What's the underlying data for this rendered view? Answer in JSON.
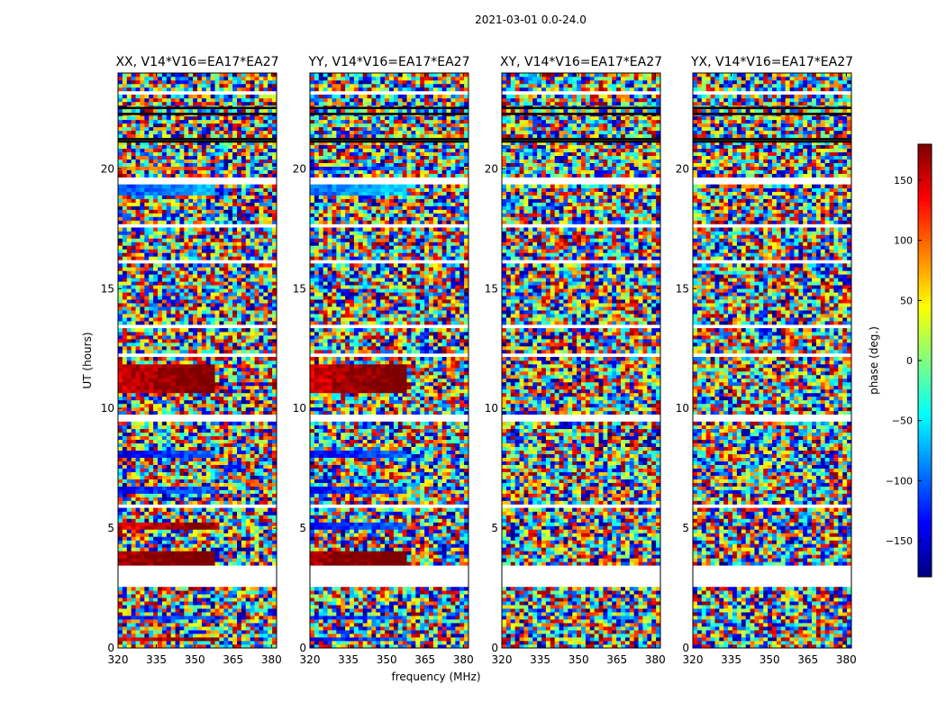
{
  "figure": {
    "suptitle": "2021-03-01 0.0-24.0",
    "shared_xlabel": "frequency (MHz)",
    "shared_ylabel": "UT (hours)"
  },
  "chart_data": {
    "type": "heatmap",
    "x": {
      "label": "frequency (MHz)",
      "range": [
        320,
        382
      ],
      "ticks": [
        320,
        335,
        350,
        365,
        380
      ],
      "tick_labels": [
        "320",
        "335",
        "350",
        "365",
        "380"
      ]
    },
    "y": {
      "label": "UT (hours)",
      "range": [
        0,
        24
      ],
      "ticks": [
        0,
        5,
        10,
        15,
        20
      ],
      "tick_labels": [
        "0",
        "5",
        "10",
        "15",
        "20"
      ]
    },
    "colorbar": {
      "label": "phase (deg.)",
      "range": [
        -180,
        180
      ],
      "ticks": [
        -150,
        -100,
        -50,
        0,
        50,
        100,
        150
      ],
      "tick_labels": [
        "−150",
        "−100",
        "−50",
        "0",
        "50",
        "100",
        "150"
      ],
      "colormap": [
        "#00007f",
        "#0000ff",
        "#007fff",
        "#00ffff",
        "#7fff7f",
        "#ffff00",
        "#ff7f00",
        "#ff0000",
        "#7f0000"
      ]
    },
    "flagged_hours": [
      [
        2.6,
        3.5
      ],
      [
        9.5,
        9.8
      ],
      [
        16.0,
        16.15
      ],
      [
        19.4,
        19.65
      ],
      [
        5.9,
        6.05
      ],
      [
        12.1,
        12.25
      ],
      [
        13.3,
        13.45
      ],
      [
        17.55,
        17.7
      ],
      [
        21.1,
        21.3
      ],
      [
        7.45,
        7.55
      ],
      [
        23.1,
        23.3
      ]
    ],
    "panels": [
      {
        "title": "XX, V14*V16=EA17*EA27",
        "pol": "XX",
        "coherent_bands": [
          [
            0.3,
            0.5,
            140
          ],
          [
            1.2,
            1.4,
            -140
          ],
          [
            3.5,
            4.0,
            160
          ],
          [
            4.9,
            5.2,
            140
          ],
          [
            6.5,
            6.8,
            -140
          ],
          [
            7.9,
            8.2,
            -140
          ],
          [
            10.6,
            11.8,
            150
          ],
          [
            18.9,
            19.4,
            -110
          ],
          [
            19.95,
            20.1,
            80
          ]
        ]
      },
      {
        "title": "YY, V14*V16=EA17*EA27",
        "pol": "YY",
        "coherent_bands": [
          [
            0.3,
            0.5,
            -140
          ],
          [
            1.2,
            1.4,
            -140
          ],
          [
            3.5,
            4.0,
            160
          ],
          [
            4.9,
            5.2,
            -140
          ],
          [
            6.5,
            6.8,
            -140
          ],
          [
            7.9,
            8.2,
            -140
          ],
          [
            10.6,
            11.8,
            150
          ],
          [
            18.9,
            19.4,
            -100
          ],
          [
            19.95,
            20.1,
            -140
          ]
        ]
      },
      {
        "title": "XY, V14*V16=EA17*EA27",
        "pol": "XY",
        "coherent_bands": []
      },
      {
        "title": "YX, V14*V16=EA17*EA27",
        "pol": "YX",
        "coherent_bands": []
      }
    ]
  }
}
